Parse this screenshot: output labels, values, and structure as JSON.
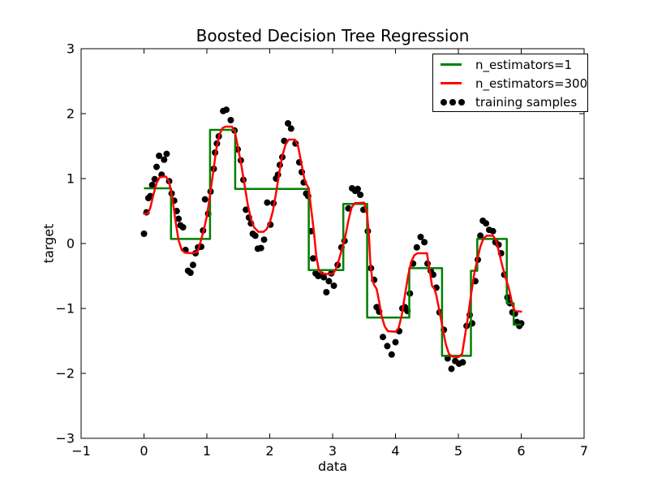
{
  "chart_data": {
    "type": "line",
    "title": "Boosted Decision Tree Regression",
    "xlabel": "data",
    "ylabel": "target",
    "xlim": [
      -1,
      7
    ],
    "ylim": [
      -3,
      3
    ],
    "xticks": [
      -1,
      0,
      1,
      2,
      3,
      4,
      5,
      6,
      7
    ],
    "yticks": [
      -3,
      -2,
      -1,
      0,
      1,
      2,
      3
    ],
    "grid": false,
    "legend_position": "upper right",
    "background": "#ffffff",
    "spine_color": "#000000",
    "series": [
      {
        "name": "n_estimators=1",
        "type": "step",
        "color": "#008000",
        "linewidth": 2.5,
        "steps": [
          [
            0.0,
            0.43,
            0.85
          ],
          [
            0.43,
            1.05,
            0.07
          ],
          [
            1.05,
            1.45,
            1.75
          ],
          [
            1.45,
            2.62,
            0.84
          ],
          [
            2.62,
            3.17,
            -0.41
          ],
          [
            3.17,
            3.55,
            0.61
          ],
          [
            3.55,
            4.22,
            -1.14
          ],
          [
            4.22,
            4.74,
            -0.38
          ],
          [
            4.74,
            5.2,
            -1.73
          ],
          [
            5.2,
            5.3,
            -0.42
          ],
          [
            5.3,
            5.77,
            0.07
          ],
          [
            5.77,
            5.88,
            -0.92
          ],
          [
            5.88,
            6.0,
            -1.25
          ]
        ]
      },
      {
        "name": "n_estimators=300",
        "type": "line",
        "color": "#ff0000",
        "linewidth": 2.5,
        "points": [
          [
            0.0,
            0.46
          ],
          [
            0.06,
            0.46
          ],
          [
            0.1,
            0.55
          ],
          [
            0.15,
            0.75
          ],
          [
            0.2,
            0.93
          ],
          [
            0.25,
            1.02
          ],
          [
            0.3,
            1.03
          ],
          [
            0.35,
            1.03
          ],
          [
            0.4,
            0.95
          ],
          [
            0.45,
            0.7
          ],
          [
            0.5,
            0.35
          ],
          [
            0.55,
            0.05
          ],
          [
            0.6,
            -0.1
          ],
          [
            0.65,
            -0.14
          ],
          [
            0.75,
            -0.15
          ],
          [
            0.85,
            -0.13
          ],
          [
            0.9,
            0.03
          ],
          [
            0.95,
            0.2
          ],
          [
            1.0,
            0.42
          ],
          [
            1.05,
            0.75
          ],
          [
            1.1,
            1.1
          ],
          [
            1.15,
            1.45
          ],
          [
            1.2,
            1.68
          ],
          [
            1.25,
            1.78
          ],
          [
            1.3,
            1.8
          ],
          [
            1.4,
            1.8
          ],
          [
            1.45,
            1.7
          ],
          [
            1.5,
            1.45
          ],
          [
            1.55,
            1.2
          ],
          [
            1.6,
            0.9
          ],
          [
            1.65,
            0.6
          ],
          [
            1.7,
            0.38
          ],
          [
            1.75,
            0.25
          ],
          [
            1.82,
            0.18
          ],
          [
            1.9,
            0.18
          ],
          [
            1.95,
            0.22
          ],
          [
            2.0,
            0.32
          ],
          [
            2.05,
            0.5
          ],
          [
            2.1,
            0.78
          ],
          [
            2.15,
            1.08
          ],
          [
            2.2,
            1.35
          ],
          [
            2.25,
            1.52
          ],
          [
            2.3,
            1.6
          ],
          [
            2.4,
            1.6
          ],
          [
            2.45,
            1.5
          ],
          [
            2.5,
            1.25
          ],
          [
            2.55,
            1.0
          ],
          [
            2.58,
            0.92
          ],
          [
            2.62,
            0.85
          ],
          [
            2.65,
            0.6
          ],
          [
            2.7,
            0.2
          ],
          [
            2.74,
            -0.2
          ],
          [
            2.78,
            -0.4
          ],
          [
            2.82,
            -0.46
          ],
          [
            2.9,
            -0.47
          ],
          [
            3.0,
            -0.47
          ],
          [
            3.05,
            -0.4
          ],
          [
            3.1,
            -0.25
          ],
          [
            3.15,
            -0.08
          ],
          [
            3.2,
            0.1
          ],
          [
            3.25,
            0.35
          ],
          [
            3.3,
            0.55
          ],
          [
            3.35,
            0.62
          ],
          [
            3.5,
            0.63
          ],
          [
            3.55,
            0.45
          ],
          [
            3.58,
            0.1
          ],
          [
            3.6,
            -0.3
          ],
          [
            3.63,
            -0.55
          ],
          [
            3.66,
            -0.64
          ],
          [
            3.7,
            -0.7
          ],
          [
            3.74,
            -0.9
          ],
          [
            3.78,
            -1.12
          ],
          [
            3.83,
            -1.28
          ],
          [
            3.88,
            -1.35
          ],
          [
            4.0,
            -1.36
          ],
          [
            4.05,
            -1.3
          ],
          [
            4.1,
            -1.1
          ],
          [
            4.15,
            -0.8
          ],
          [
            4.2,
            -0.5
          ],
          [
            4.25,
            -0.28
          ],
          [
            4.3,
            -0.18
          ],
          [
            4.35,
            -0.15
          ],
          [
            4.5,
            -0.15
          ],
          [
            4.55,
            -0.45
          ],
          [
            4.58,
            -0.65
          ],
          [
            4.62,
            -0.7
          ],
          [
            4.65,
            -0.8
          ],
          [
            4.7,
            -1.05
          ],
          [
            4.75,
            -1.3
          ],
          [
            4.8,
            -1.55
          ],
          [
            4.85,
            -1.7
          ],
          [
            4.9,
            -1.74
          ],
          [
            5.0,
            -1.75
          ],
          [
            5.06,
            -1.7
          ],
          [
            5.1,
            -1.45
          ],
          [
            5.15,
            -1.15
          ],
          [
            5.2,
            -0.8
          ],
          [
            5.25,
            -0.48
          ],
          [
            5.3,
            -0.25
          ],
          [
            5.35,
            -0.05
          ],
          [
            5.4,
            0.08
          ],
          [
            5.45,
            0.12
          ],
          [
            5.55,
            0.12
          ],
          [
            5.6,
            0.05
          ],
          [
            5.65,
            -0.15
          ],
          [
            5.7,
            -0.35
          ],
          [
            5.75,
            -0.52
          ],
          [
            5.8,
            -0.68
          ],
          [
            5.83,
            -0.8
          ],
          [
            5.86,
            -0.95
          ],
          [
            5.9,
            -1.04
          ],
          [
            6.0,
            -1.05
          ]
        ]
      },
      {
        "name": "training samples",
        "type": "scatter",
        "color": "#000000",
        "markersize": 4,
        "points": [
          [
            0.0,
            0.15
          ],
          [
            0.04,
            0.48
          ],
          [
            0.07,
            0.7
          ],
          [
            0.1,
            0.73
          ],
          [
            0.13,
            0.9
          ],
          [
            0.17,
            0.99
          ],
          [
            0.2,
            1.18
          ],
          [
            0.24,
            1.35
          ],
          [
            0.28,
            1.06
          ],
          [
            0.32,
            1.29
          ],
          [
            0.36,
            1.38
          ],
          [
            0.4,
            0.96
          ],
          [
            0.44,
            0.77
          ],
          [
            0.48,
            0.66
          ],
          [
            0.52,
            0.5
          ],
          [
            0.55,
            0.38
          ],
          [
            0.58,
            0.28
          ],
          [
            0.62,
            0.25
          ],
          [
            0.66,
            -0.1
          ],
          [
            0.7,
            -0.42
          ],
          [
            0.74,
            -0.45
          ],
          [
            0.78,
            -0.33
          ],
          [
            0.82,
            -0.15
          ],
          [
            0.86,
            -0.06
          ],
          [
            0.91,
            -0.05
          ],
          [
            0.94,
            0.2
          ],
          [
            0.97,
            0.68
          ],
          [
            1.02,
            0.46
          ],
          [
            1.06,
            0.8
          ],
          [
            1.11,
            1.15
          ],
          [
            1.13,
            1.4
          ],
          [
            1.16,
            1.54
          ],
          [
            1.19,
            1.65
          ],
          [
            1.26,
            2.04
          ],
          [
            1.31,
            2.06
          ],
          [
            1.38,
            1.9
          ],
          [
            1.44,
            1.74
          ],
          [
            1.49,
            1.45
          ],
          [
            1.54,
            1.28
          ],
          [
            1.58,
            0.98
          ],
          [
            1.62,
            0.52
          ],
          [
            1.67,
            0.4
          ],
          [
            1.7,
            0.31
          ],
          [
            1.73,
            0.15
          ],
          [
            1.77,
            0.12
          ],
          [
            1.81,
            -0.08
          ],
          [
            1.86,
            -0.07
          ],
          [
            1.91,
            0.06
          ],
          [
            1.96,
            0.63
          ],
          [
            2.01,
            0.29
          ],
          [
            2.06,
            0.62
          ],
          [
            2.1,
            1.0
          ],
          [
            2.13,
            1.06
          ],
          [
            2.16,
            1.21
          ],
          [
            2.2,
            1.33
          ],
          [
            2.23,
            1.58
          ],
          [
            2.29,
            1.85
          ],
          [
            2.34,
            1.77
          ],
          [
            2.41,
            1.54
          ],
          [
            2.47,
            1.25
          ],
          [
            2.51,
            1.1
          ],
          [
            2.54,
            0.94
          ],
          [
            2.58,
            0.77
          ],
          [
            2.61,
            0.73
          ],
          [
            2.66,
            0.19
          ],
          [
            2.69,
            -0.23
          ],
          [
            2.73,
            -0.46
          ],
          [
            2.77,
            -0.5
          ],
          [
            2.82,
            -0.48
          ],
          [
            2.86,
            -0.52
          ],
          [
            2.9,
            -0.75
          ],
          [
            2.94,
            -0.58
          ],
          [
            2.98,
            -0.46
          ],
          [
            3.02,
            -0.65
          ],
          [
            3.08,
            -0.33
          ],
          [
            3.14,
            -0.06
          ],
          [
            3.19,
            0.04
          ],
          [
            3.25,
            0.54
          ],
          [
            3.31,
            0.85
          ],
          [
            3.36,
            0.81
          ],
          [
            3.4,
            0.84
          ],
          [
            3.44,
            0.75
          ],
          [
            3.49,
            0.52
          ],
          [
            3.56,
            0.19
          ],
          [
            3.61,
            -0.38
          ],
          [
            3.66,
            -0.56
          ],
          [
            3.7,
            -0.98
          ],
          [
            3.74,
            -1.05
          ],
          [
            3.8,
            -1.44
          ],
          [
            3.87,
            -1.58
          ],
          [
            3.94,
            -1.71
          ],
          [
            4.0,
            -1.52
          ],
          [
            4.06,
            -1.35
          ],
          [
            4.11,
            -1.0
          ],
          [
            4.15,
            -0.98
          ],
          [
            4.19,
            -1.04
          ],
          [
            4.23,
            -0.77
          ],
          [
            4.28,
            -0.31
          ],
          [
            4.34,
            -0.06
          ],
          [
            4.4,
            0.1
          ],
          [
            4.46,
            0.02
          ],
          [
            4.51,
            -0.31
          ],
          [
            4.56,
            -0.42
          ],
          [
            4.6,
            -0.48
          ],
          [
            4.65,
            -0.68
          ],
          [
            4.7,
            -1.06
          ],
          [
            4.77,
            -1.33
          ],
          [
            4.83,
            -1.77
          ],
          [
            4.89,
            -1.93
          ],
          [
            4.95,
            -1.81
          ],
          [
            5.01,
            -1.85
          ],
          [
            5.07,
            -1.83
          ],
          [
            5.13,
            -1.27
          ],
          [
            5.18,
            -1.1
          ],
          [
            5.22,
            -1.23
          ],
          [
            5.27,
            -0.58
          ],
          [
            5.31,
            -0.25
          ],
          [
            5.35,
            0.12
          ],
          [
            5.39,
            0.35
          ],
          [
            5.44,
            0.31
          ],
          [
            5.49,
            0.21
          ],
          [
            5.55,
            0.19
          ],
          [
            5.59,
            0.02
          ],
          [
            5.64,
            -0.02
          ],
          [
            5.68,
            -0.15
          ],
          [
            5.73,
            -0.48
          ],
          [
            5.78,
            -0.83
          ],
          [
            5.82,
            -0.92
          ],
          [
            5.86,
            -1.06
          ],
          [
            5.9,
            -1.08
          ],
          [
            5.93,
            -1.21
          ],
          [
            5.97,
            -1.27
          ],
          [
            6.0,
            -1.23
          ]
        ]
      }
    ]
  },
  "legend": {
    "entries": [
      {
        "label": "n_estimators=1",
        "swatch": "green-line"
      },
      {
        "label": "n_estimators=300",
        "swatch": "red-line"
      },
      {
        "label": "training samples",
        "swatch": "black-dots"
      }
    ]
  }
}
